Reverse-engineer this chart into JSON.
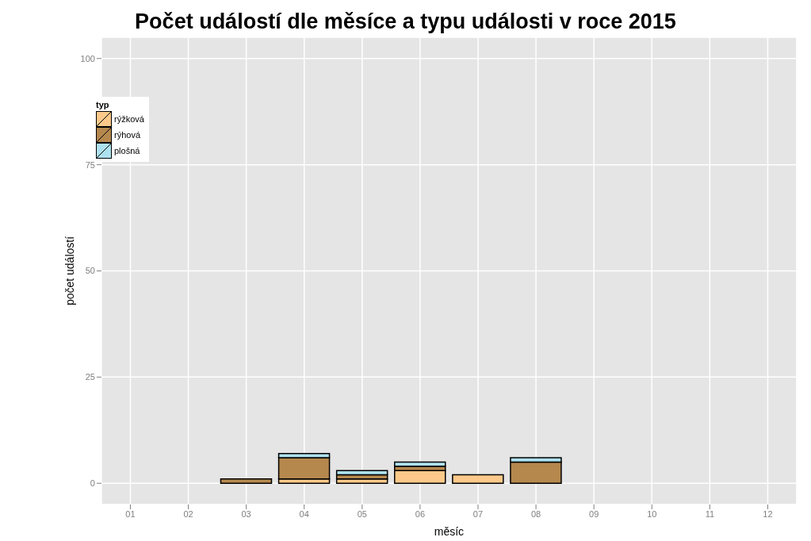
{
  "chart_data": {
    "type": "bar",
    "title": "Počet událostí dle měsíce a typu události v roce 2015",
    "xlabel": "měsíc",
    "ylabel": "počet událostí",
    "legend_title": "typ",
    "categories": [
      "01",
      "02",
      "03",
      "04",
      "05",
      "06",
      "07",
      "08",
      "09",
      "10",
      "11",
      "12"
    ],
    "series": [
      {
        "name": "rýžková",
        "color": "#fdc98a",
        "values": [
          0,
          0,
          0,
          1,
          1,
          3,
          2,
          0,
          0,
          0,
          0,
          0
        ]
      },
      {
        "name": "rýhová",
        "color": "#b5884e",
        "values": [
          0,
          0,
          1,
          5,
          1,
          1,
          0,
          5,
          0,
          0,
          0,
          0
        ]
      },
      {
        "name": "plošná",
        "color": "#aee1ef",
        "values": [
          0,
          0,
          0,
          1,
          1,
          1,
          0,
          1,
          0,
          0,
          0,
          0
        ]
      }
    ],
    "stacked": true,
    "ylim": [
      -5,
      105
    ],
    "yticks": [
      0,
      25,
      50,
      75,
      100
    ],
    "grid": true,
    "legend": "top left"
  }
}
